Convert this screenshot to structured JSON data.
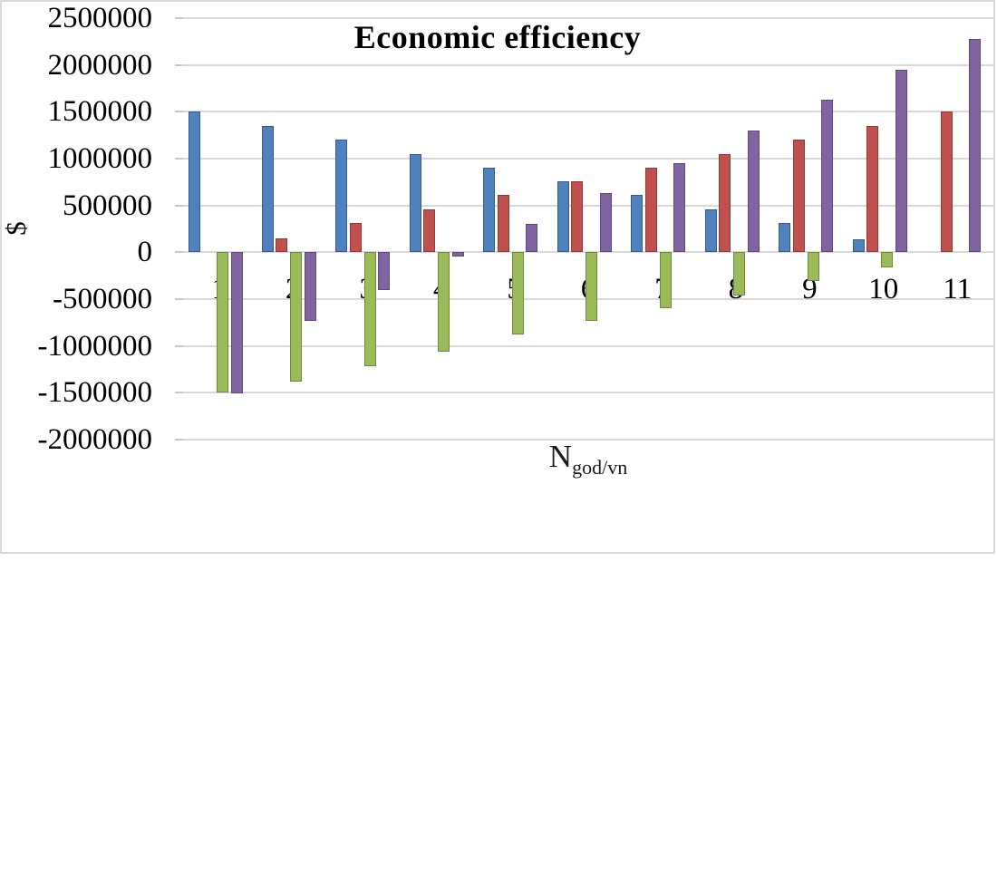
{
  "chart_data": {
    "type": "bar",
    "title": "Economic efficiency",
    "ylabel": "$",
    "xlabel": "N god/vn",
    "xlabel_base": "N",
    "xlabel_subscript": "god/vn",
    "categories": [
      "1",
      "2",
      "3",
      "4",
      "5",
      "6",
      "7",
      "8",
      "9",
      "10",
      "11"
    ],
    "series": [
      {
        "name": "blue",
        "color": "#4f81bd",
        "border_color": "#38598a",
        "values": [
          1500000,
          1350000,
          1200000,
          1050000,
          900000,
          760000,
          610000,
          460000,
          310000,
          140000,
          0
        ]
      },
      {
        "name": "red",
        "color": "#c0504d",
        "border_color": "#8e3a38",
        "values": [
          0,
          150000,
          310000,
          460000,
          610000,
          760000,
          900000,
          1050000,
          1200000,
          1350000,
          1500000
        ]
      },
      {
        "name": "green",
        "color": "#9bbb59",
        "border_color": "#73893f",
        "values": [
          -1500000,
          -1380000,
          -1220000,
          -1060000,
          -880000,
          -730000,
          -600000,
          -460000,
          -310000,
          -160000,
          0
        ]
      },
      {
        "name": "purple",
        "color": "#8064a2",
        "border_color": "#5d4a77",
        "values": [
          -1510000,
          -730000,
          -400000,
          -50000,
          300000,
          630000,
          950000,
          1300000,
          1630000,
          1950000,
          2280000
        ]
      }
    ],
    "y_ticks": [
      2500000,
      2000000,
      1500000,
      1000000,
      500000,
      0,
      -500000,
      -1000000,
      -1500000,
      -2000000
    ],
    "ylim": [
      -2000000,
      2500000
    ],
    "grid": true,
    "legend": false,
    "grid_color": "#d9d9d9",
    "figure_border_color": "#d9d9d9",
    "background": "#ffffff"
  }
}
